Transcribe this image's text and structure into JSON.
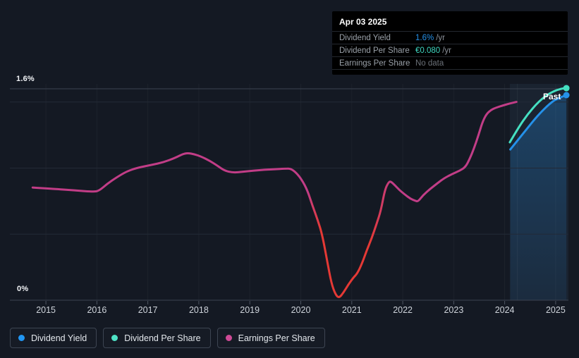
{
  "tooltip": {
    "date": "Apr 03 2025",
    "rows": [
      {
        "label": "Dividend Yield",
        "value": "1.6%",
        "suffix": "/yr",
        "value_color": "#2591e9"
      },
      {
        "label": "Dividend Per Share",
        "value": "€0.080",
        "suffix": "/yr",
        "value_color": "#3fd6c0"
      },
      {
        "label": "Earnings Per Share",
        "value": "No data",
        "suffix": "",
        "value_color": "#6b7178"
      }
    ]
  },
  "labels": {
    "y_max": "1.6%",
    "y_min": "0%",
    "past": "Past"
  },
  "legend": {
    "items": [
      {
        "label": "Dividend Yield",
        "color": "#2196f3"
      },
      {
        "label": "Dividend Per Share",
        "color": "#4ee2c6"
      },
      {
        "label": "Earnings Per Share",
        "color": "#cf4a96"
      }
    ]
  },
  "chart_data": {
    "type": "line",
    "title": "Dividend history",
    "xlim": [
      2014.75,
      2025.25
    ],
    "ylim": [
      0,
      1.6
    ],
    "y_unit": "%",
    "x_ticks": [
      "2015",
      "2016",
      "2017",
      "2018",
      "2019",
      "2020",
      "2021",
      "2022",
      "2023",
      "2024",
      "2025"
    ],
    "x_tick_years": [
      2015,
      2016,
      2017,
      2018,
      2019,
      2020,
      2021,
      2022,
      2023,
      2024,
      2025
    ],
    "y_gridlines": [
      {
        "value": 0,
        "major": true
      },
      {
        "value": 0.5,
        "major": false
      },
      {
        "value": 1.0,
        "major": false
      },
      {
        "value": 1.5,
        "major": false
      },
      {
        "value": 1.6,
        "major": true
      }
    ],
    "past_region": {
      "start": 2024.1,
      "end": 2025.25,
      "divider": 2024.25
    },
    "series": [
      {
        "name": "Dividend Yield",
        "color": "#2591e9",
        "end_dot": true,
        "area_fill": true,
        "points": [
          [
            2024.11,
            1.141
          ],
          [
            2024.39,
            1.275
          ],
          [
            2024.66,
            1.405
          ],
          [
            2024.93,
            1.505
          ],
          [
            2025.09,
            1.535
          ],
          [
            2025.21,
            1.552
          ]
        ]
      },
      {
        "name": "Dividend Per Share",
        "color": "#45e0c2",
        "end_dot": true,
        "area_fill": false,
        "points": [
          [
            2024.1,
            1.195
          ],
          [
            2024.27,
            1.307
          ],
          [
            2024.45,
            1.408
          ],
          [
            2024.64,
            1.493
          ],
          [
            2024.82,
            1.552
          ],
          [
            2025.0,
            1.589
          ],
          [
            2025.14,
            1.603
          ],
          [
            2025.21,
            1.605
          ]
        ]
      },
      {
        "name": "Earnings Per Share",
        "color": "#c23d87",
        "negative_color": "#e53935",
        "end_dot": false,
        "area_fill": false,
        "negative_fade": {
          "fade_in": [
            2020.13,
            2020.39
          ],
          "fade_out": [
            2021.36,
            2021.78
          ]
        },
        "points": [
          [
            2014.74,
            0.853
          ],
          [
            2015.14,
            0.843
          ],
          [
            2015.55,
            0.832
          ],
          [
            2015.93,
            0.821
          ],
          [
            2016.04,
            0.827
          ],
          [
            2016.2,
            0.88
          ],
          [
            2016.38,
            0.928
          ],
          [
            2016.59,
            0.976
          ],
          [
            2016.8,
            1.003
          ],
          [
            2017.07,
            1.024
          ],
          [
            2017.31,
            1.045
          ],
          [
            2017.53,
            1.077
          ],
          [
            2017.67,
            1.104
          ],
          [
            2017.78,
            1.115
          ],
          [
            2017.92,
            1.104
          ],
          [
            2018.04,
            1.088
          ],
          [
            2018.21,
            1.056
          ],
          [
            2018.36,
            1.019
          ],
          [
            2018.5,
            0.981
          ],
          [
            2018.67,
            0.965
          ],
          [
            2018.87,
            0.973
          ],
          [
            2019.08,
            0.981
          ],
          [
            2019.29,
            0.987
          ],
          [
            2019.5,
            0.992
          ],
          [
            2019.68,
            0.995
          ],
          [
            2019.8,
            0.997
          ],
          [
            2019.91,
            0.965
          ],
          [
            2020.02,
            0.912
          ],
          [
            2020.13,
            0.832
          ],
          [
            2020.23,
            0.715
          ],
          [
            2020.33,
            0.608
          ],
          [
            2020.42,
            0.496
          ],
          [
            2020.52,
            0.293
          ],
          [
            2020.6,
            0.128
          ],
          [
            2020.68,
            0.043
          ],
          [
            2020.75,
            0.016
          ],
          [
            2020.84,
            0.059
          ],
          [
            2020.93,
            0.117
          ],
          [
            2021.03,
            0.171
          ],
          [
            2021.11,
            0.203
          ],
          [
            2021.2,
            0.277
          ],
          [
            2021.29,
            0.373
          ],
          [
            2021.39,
            0.469
          ],
          [
            2021.49,
            0.581
          ],
          [
            2021.57,
            0.677
          ],
          [
            2021.65,
            0.837
          ],
          [
            2021.72,
            0.891
          ],
          [
            2021.76,
            0.901
          ],
          [
            2021.85,
            0.869
          ],
          [
            2021.94,
            0.832
          ],
          [
            2022.04,
            0.8
          ],
          [
            2022.15,
            0.768
          ],
          [
            2022.25,
            0.752
          ],
          [
            2022.3,
            0.747
          ],
          [
            2022.4,
            0.795
          ],
          [
            2022.54,
            0.843
          ],
          [
            2022.68,
            0.885
          ],
          [
            2022.81,
            0.923
          ],
          [
            2022.97,
            0.955
          ],
          [
            2023.12,
            0.981
          ],
          [
            2023.23,
            1.008
          ],
          [
            2023.31,
            1.067
          ],
          [
            2023.4,
            1.152
          ],
          [
            2023.48,
            1.243
          ],
          [
            2023.56,
            1.344
          ],
          [
            2023.64,
            1.408
          ],
          [
            2023.73,
            1.44
          ],
          [
            2023.82,
            1.456
          ],
          [
            2023.95,
            1.472
          ],
          [
            2024.09,
            1.488
          ],
          [
            2024.23,
            1.501
          ]
        ]
      }
    ],
    "legend_position": "bottom-left",
    "grid": true
  },
  "colors": {
    "background": "#141923",
    "grid_major": "#3b4250",
    "grid_minor": "#232a37",
    "grid_vertical": "rgba(255,255,255,0.04)",
    "tick": "#4c5460",
    "tick_label": "#ced3da",
    "past_band": "rgba(110,165,220,0.07)",
    "yield_fill_top": "rgba(37,145,233,0.30)",
    "yield_fill_bottom": "rgba(37,145,233,0.08)"
  }
}
